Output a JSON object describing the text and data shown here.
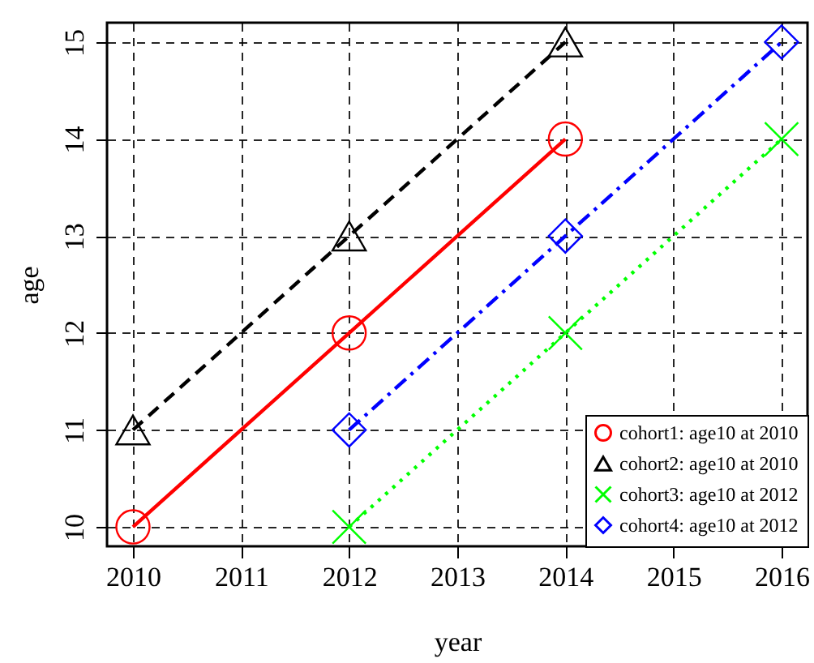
{
  "chart_data": {
    "type": "line",
    "xlabel": "year",
    "ylabel": "age",
    "xlim": [
      2009.76,
      2016.24
    ],
    "xticks": [
      2010,
      2011,
      2012,
      2013,
      2014,
      2015,
      2016
    ],
    "ylim": [
      9.8,
      15.2
    ],
    "yticks": [
      10,
      11,
      12,
      13,
      14,
      15
    ],
    "grid": true,
    "legend": "bottom right",
    "series": [
      {
        "name": "cohort1: age10 at 2010",
        "color": "#ff0000",
        "x": [
          2010,
          2012,
          2014
        ],
        "values": [
          10,
          12,
          14
        ],
        "marker": "circle",
        "line_style": "solid"
      },
      {
        "name": "cohort2: age10 at 2010",
        "color": "#000000",
        "x": [
          2010,
          2012,
          2014
        ],
        "values": [
          11,
          13,
          15
        ],
        "marker": "triangle",
        "line_style": "dashed"
      },
      {
        "name": "cohort3: age10 at 2012",
        "color": "#00ff00",
        "x": [
          2012,
          2014,
          2016
        ],
        "values": [
          10,
          12,
          14
        ],
        "marker": "cross",
        "line_style": "dotted"
      },
      {
        "name": "cohort4: age10 at 2012",
        "color": "#0000ff",
        "x": [
          2012,
          2014,
          2016
        ],
        "values": [
          11,
          13,
          15
        ],
        "marker": "diamond",
        "line_style": "dashdot"
      }
    ]
  }
}
